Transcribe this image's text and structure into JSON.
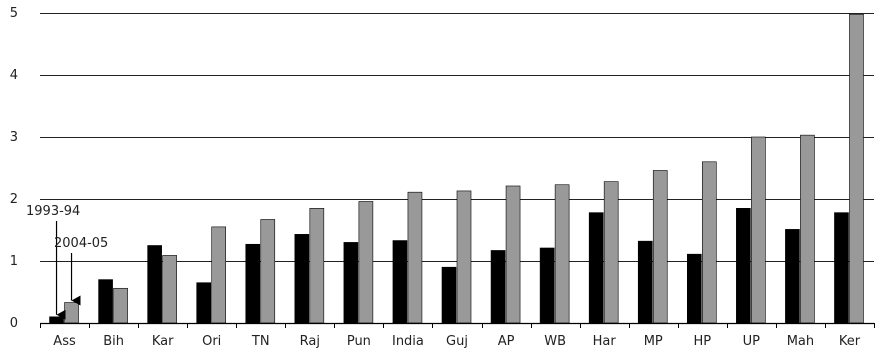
{
  "chart_data": {
    "type": "bar",
    "categories": [
      "Ass",
      "Bih",
      "Kar",
      "Ori",
      "TN",
      "Raj",
      "Pun",
      "India",
      "Guj",
      "AP",
      "WB",
      "Har",
      "MP",
      "HP",
      "UP",
      "Mah",
      "Ker"
    ],
    "series": [
      {
        "name": "1993-94",
        "color": "#000000",
        "values": [
          0.1,
          0.7,
          1.25,
          0.65,
          1.27,
          1.43,
          1.3,
          1.33,
          0.9,
          1.17,
          1.21,
          1.78,
          1.32,
          1.11,
          1.85,
          1.51,
          1.78
        ]
      },
      {
        "name": "2004-05",
        "color": "#999999",
        "values": [
          0.33,
          0.56,
          1.09,
          1.55,
          1.67,
          1.85,
          1.96,
          2.11,
          2.13,
          2.21,
          2.23,
          2.28,
          2.46,
          2.6,
          3.0,
          3.03,
          4.98
        ]
      }
    ],
    "ylim": [
      0,
      5
    ],
    "yticks": [
      "0",
      "1",
      "2",
      "3",
      "4",
      "5"
    ],
    "grid": true,
    "annotations": [
      {
        "text": "1993-94",
        "series": 0,
        "category": "Ass"
      },
      {
        "text": "2004-05",
        "series": 1,
        "category": "Ass"
      }
    ]
  }
}
